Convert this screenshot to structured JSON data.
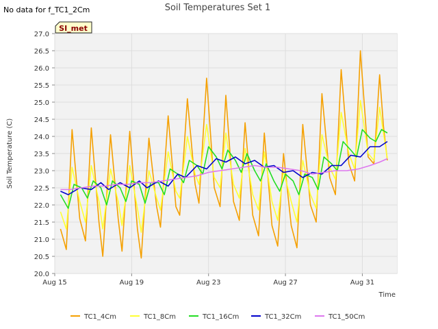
{
  "chart_data": {
    "type": "line",
    "title": "Soil Temperatures Set 1",
    "nodata_note": "No data for f_TC1_2Cm",
    "site_badge": "SI_met",
    "xlabel": "Time",
    "ylabel": "Soil Temperature (C)",
    "ylim": [
      20.0,
      27.0
    ],
    "xlim_days": [
      15,
      32.8
    ],
    "yticks": [
      "20.0",
      "20.5",
      "21.0",
      "21.5",
      "22.0",
      "22.5",
      "23.0",
      "23.5",
      "24.0",
      "24.5",
      "25.0",
      "25.5",
      "26.0",
      "26.5",
      "27.0"
    ],
    "xticks": [
      {
        "label": "Aug 15",
        "day": 15
      },
      {
        "label": "Aug 19",
        "day": 19
      },
      {
        "label": "Aug 23",
        "day": 23
      },
      {
        "label": "Aug 27",
        "day": 27
      },
      {
        "label": "Aug 31",
        "day": 31
      }
    ],
    "grid": true,
    "legend_position": "bottom",
    "series": [
      {
        "name": "TC1_4Cm",
        "color": "#f5a000",
        "points": [
          [
            15.3,
            21.3
          ],
          [
            15.6,
            20.7
          ],
          [
            15.9,
            24.2
          ],
          [
            16.3,
            21.6
          ],
          [
            16.6,
            20.95
          ],
          [
            16.9,
            24.25
          ],
          [
            17.3,
            21.5
          ],
          [
            17.5,
            20.5
          ],
          [
            17.9,
            24.05
          ],
          [
            18.3,
            21.6
          ],
          [
            18.5,
            20.65
          ],
          [
            18.9,
            24.15
          ],
          [
            19.3,
            21.3
          ],
          [
            19.5,
            20.45
          ],
          [
            19.9,
            23.95
          ],
          [
            20.3,
            21.95
          ],
          [
            20.5,
            21.35
          ],
          [
            20.9,
            24.6
          ],
          [
            21.3,
            21.95
          ],
          [
            21.5,
            21.7
          ],
          [
            21.9,
            25.1
          ],
          [
            22.3,
            22.6
          ],
          [
            22.5,
            22.05
          ],
          [
            22.9,
            25.7
          ],
          [
            23.3,
            22.5
          ],
          [
            23.6,
            21.95
          ],
          [
            23.9,
            25.2
          ],
          [
            24.3,
            22.1
          ],
          [
            24.6,
            21.55
          ],
          [
            24.9,
            24.4
          ],
          [
            25.3,
            21.7
          ],
          [
            25.6,
            21.1
          ],
          [
            25.9,
            24.1
          ],
          [
            26.3,
            21.4
          ],
          [
            26.6,
            20.8
          ],
          [
            26.9,
            23.5
          ],
          [
            27.3,
            21.4
          ],
          [
            27.6,
            20.75
          ],
          [
            27.9,
            24.35
          ],
          [
            28.3,
            22.0
          ],
          [
            28.6,
            21.5
          ],
          [
            28.9,
            25.25
          ],
          [
            29.3,
            22.8
          ],
          [
            29.6,
            22.3
          ],
          [
            29.9,
            25.95
          ],
          [
            30.3,
            23.2
          ],
          [
            30.6,
            22.7
          ],
          [
            30.9,
            26.5
          ],
          [
            31.3,
            23.4
          ],
          [
            31.6,
            23.2
          ],
          [
            31.9,
            25.8
          ],
          [
            32.1,
            24.3
          ],
          [
            32.3,
            23.3
          ]
        ]
      },
      {
        "name": "TC1_8Cm",
        "color": "#ffff33",
        "points": [
          [
            15.3,
            21.8
          ],
          [
            15.6,
            21.3
          ],
          [
            15.9,
            23.1
          ],
          [
            16.3,
            22.1
          ],
          [
            16.6,
            21.5
          ],
          [
            16.9,
            23.15
          ],
          [
            17.3,
            22.1
          ],
          [
            17.5,
            21.3
          ],
          [
            17.9,
            23.05
          ],
          [
            18.3,
            22.1
          ],
          [
            18.5,
            21.4
          ],
          [
            18.9,
            23.15
          ],
          [
            19.3,
            21.9
          ],
          [
            19.5,
            21.2
          ],
          [
            19.9,
            23.0
          ],
          [
            20.3,
            22.2
          ],
          [
            20.5,
            21.85
          ],
          [
            20.9,
            23.55
          ],
          [
            21.3,
            22.4
          ],
          [
            21.5,
            22.2
          ],
          [
            21.9,
            24.0
          ],
          [
            22.3,
            22.9
          ],
          [
            22.5,
            22.6
          ],
          [
            22.9,
            24.35
          ],
          [
            23.3,
            22.8
          ],
          [
            23.6,
            22.5
          ],
          [
            23.9,
            24.1
          ],
          [
            24.3,
            22.6
          ],
          [
            24.6,
            22.2
          ],
          [
            24.9,
            23.65
          ],
          [
            25.3,
            22.3
          ],
          [
            25.6,
            21.85
          ],
          [
            25.9,
            23.55
          ],
          [
            26.3,
            22.1
          ],
          [
            26.6,
            21.55
          ],
          [
            26.9,
            23.0
          ],
          [
            27.3,
            22.1
          ],
          [
            27.6,
            21.5
          ],
          [
            27.9,
            23.3
          ],
          [
            28.3,
            22.3
          ],
          [
            28.6,
            21.9
          ],
          [
            28.9,
            24.05
          ],
          [
            29.3,
            23.1
          ],
          [
            29.6,
            22.75
          ],
          [
            29.9,
            24.7
          ],
          [
            30.3,
            23.5
          ],
          [
            30.6,
            23.05
          ],
          [
            30.9,
            25.05
          ],
          [
            31.3,
            23.5
          ],
          [
            31.6,
            23.3
          ],
          [
            31.9,
            24.85
          ],
          [
            32.1,
            24.1
          ],
          [
            32.3,
            23.35
          ]
        ]
      },
      {
        "name": "TC1_16Cm",
        "color": "#22dd22",
        "points": [
          [
            15.3,
            22.3
          ],
          [
            15.7,
            21.9
          ],
          [
            16.0,
            22.6
          ],
          [
            16.4,
            22.5
          ],
          [
            16.7,
            22.2
          ],
          [
            17.0,
            22.7
          ],
          [
            17.4,
            22.5
          ],
          [
            17.7,
            22.0
          ],
          [
            18.0,
            22.7
          ],
          [
            18.4,
            22.5
          ],
          [
            18.7,
            22.1
          ],
          [
            19.0,
            22.7
          ],
          [
            19.4,
            22.6
          ],
          [
            19.7,
            22.05
          ],
          [
            20.0,
            22.65
          ],
          [
            20.4,
            22.65
          ],
          [
            20.7,
            22.3
          ],
          [
            21.0,
            23.05
          ],
          [
            21.4,
            22.9
          ],
          [
            21.7,
            22.65
          ],
          [
            22.0,
            23.3
          ],
          [
            22.4,
            23.15
          ],
          [
            22.7,
            22.9
          ],
          [
            23.0,
            23.7
          ],
          [
            23.4,
            23.4
          ],
          [
            23.7,
            23.05
          ],
          [
            24.0,
            23.6
          ],
          [
            24.4,
            23.3
          ],
          [
            24.7,
            22.95
          ],
          [
            25.0,
            23.5
          ],
          [
            25.4,
            23.0
          ],
          [
            25.7,
            22.7
          ],
          [
            26.0,
            23.2
          ],
          [
            26.4,
            22.7
          ],
          [
            26.7,
            22.4
          ],
          [
            27.0,
            22.9
          ],
          [
            27.4,
            22.7
          ],
          [
            27.7,
            22.3
          ],
          [
            28.0,
            22.9
          ],
          [
            28.4,
            22.8
          ],
          [
            28.7,
            22.45
          ],
          [
            29.0,
            23.4
          ],
          [
            29.4,
            23.2
          ],
          [
            29.7,
            23.0
          ],
          [
            30.0,
            23.85
          ],
          [
            30.4,
            23.6
          ],
          [
            30.7,
            23.4
          ],
          [
            31.0,
            24.2
          ],
          [
            31.4,
            23.95
          ],
          [
            31.7,
            23.85
          ],
          [
            32.0,
            24.2
          ],
          [
            32.3,
            24.1
          ]
        ]
      },
      {
        "name": "TC1_32Cm",
        "color": "#0000cc",
        "points": [
          [
            15.3,
            22.4
          ],
          [
            15.7,
            22.3
          ],
          [
            16.3,
            22.5
          ],
          [
            16.9,
            22.45
          ],
          [
            17.4,
            22.65
          ],
          [
            17.8,
            22.45
          ],
          [
            18.4,
            22.65
          ],
          [
            18.9,
            22.5
          ],
          [
            19.4,
            22.7
          ],
          [
            19.8,
            22.5
          ],
          [
            20.4,
            22.7
          ],
          [
            20.9,
            22.55
          ],
          [
            21.4,
            22.9
          ],
          [
            21.8,
            22.8
          ],
          [
            22.4,
            23.15
          ],
          [
            22.9,
            23.05
          ],
          [
            23.4,
            23.35
          ],
          [
            23.9,
            23.25
          ],
          [
            24.4,
            23.4
          ],
          [
            24.9,
            23.2
          ],
          [
            25.4,
            23.3
          ],
          [
            25.9,
            23.1
          ],
          [
            26.4,
            23.15
          ],
          [
            26.9,
            22.95
          ],
          [
            27.4,
            23.0
          ],
          [
            27.9,
            22.8
          ],
          [
            28.4,
            22.95
          ],
          [
            28.9,
            22.9
          ],
          [
            29.4,
            23.15
          ],
          [
            29.9,
            23.15
          ],
          [
            30.4,
            23.45
          ],
          [
            30.9,
            23.4
          ],
          [
            31.4,
            23.7
          ],
          [
            31.9,
            23.7
          ],
          [
            32.3,
            23.85
          ]
        ]
      },
      {
        "name": "TC1_50Cm",
        "color": "#dd77ee",
        "points": [
          [
            15.3,
            22.45
          ],
          [
            15.8,
            22.45
          ],
          [
            16.4,
            22.5
          ],
          [
            17.0,
            22.55
          ],
          [
            17.6,
            22.55
          ],
          [
            18.2,
            22.6
          ],
          [
            18.8,
            22.6
          ],
          [
            19.4,
            22.65
          ],
          [
            20.0,
            22.65
          ],
          [
            20.6,
            22.7
          ],
          [
            21.2,
            22.75
          ],
          [
            21.8,
            22.8
          ],
          [
            22.4,
            22.85
          ],
          [
            23.0,
            22.95
          ],
          [
            23.6,
            23.0
          ],
          [
            24.2,
            23.05
          ],
          [
            24.8,
            23.1
          ],
          [
            25.4,
            23.15
          ],
          [
            26.0,
            23.1
          ],
          [
            26.6,
            23.1
          ],
          [
            27.2,
            23.05
          ],
          [
            27.8,
            23.0
          ],
          [
            28.4,
            22.9
          ],
          [
            29.0,
            22.95
          ],
          [
            29.6,
            23.0
          ],
          [
            30.2,
            23.0
          ],
          [
            30.8,
            23.05
          ],
          [
            31.4,
            23.15
          ],
          [
            31.9,
            23.25
          ],
          [
            32.3,
            23.35
          ]
        ]
      }
    ]
  }
}
